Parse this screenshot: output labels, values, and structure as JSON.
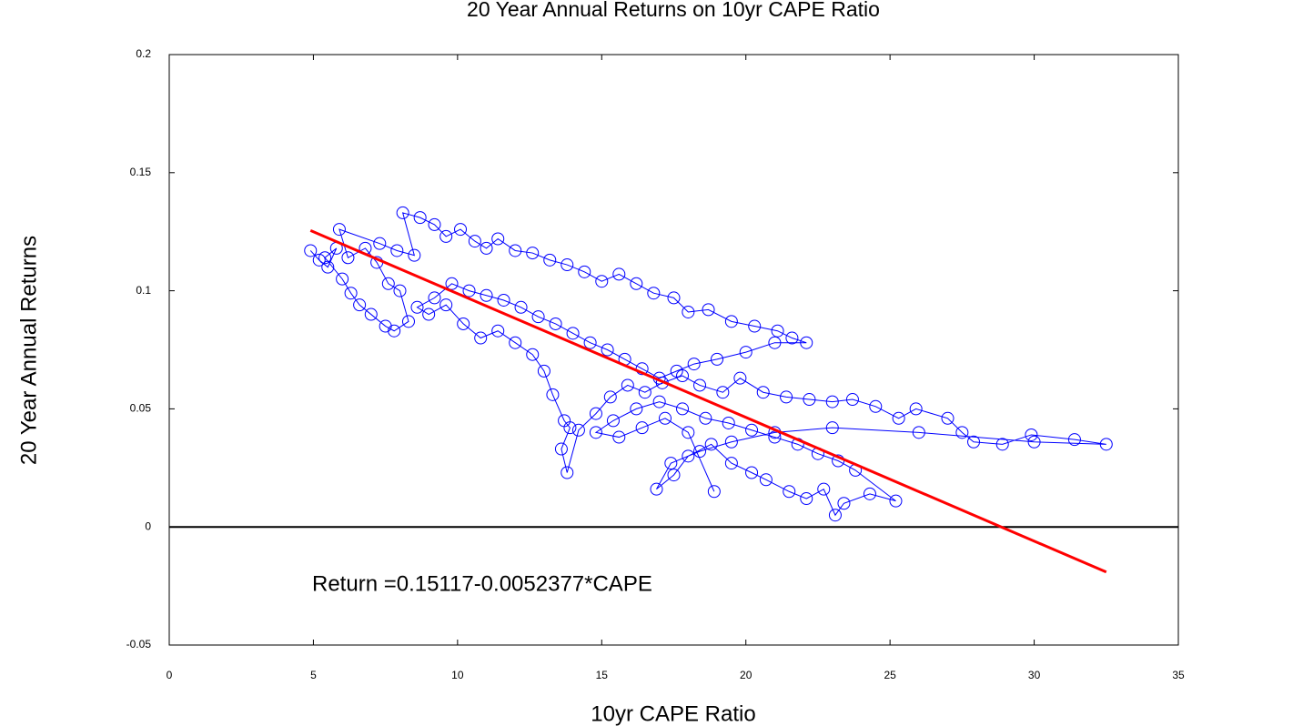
{
  "chart_data": {
    "type": "line",
    "title": "20 Year Annual Returns on 10yr CAPE Ratio",
    "x_label": "10yr CAPE Ratio",
    "y_label": "20 Year Annual Returns",
    "annotation": "Return =0.15117-0.0052377*CAPE",
    "xlim": [
      0,
      35
    ],
    "ylim": [
      -0.05,
      0.2
    ],
    "xticks": [
      0,
      5,
      10,
      15,
      20,
      25,
      30,
      35
    ],
    "yticks": [
      -0.05,
      0,
      0.05,
      0.1,
      0.15,
      0.2
    ],
    "hlines": [
      0
    ],
    "series": [
      {
        "color": "#0000ff",
        "marker": "circle",
        "x": [
          4.9,
          5.2,
          5.5,
          5.8,
          5.4,
          6.0,
          6.3,
          6.6,
          7.0,
          7.5,
          7.8,
          8.3,
          8.0,
          7.6,
          7.2,
          6.8,
          6.2,
          5.9,
          7.3,
          7.9,
          8.5,
          8.1,
          8.7,
          9.2,
          9.6,
          10.1,
          10.6,
          11.0,
          11.4,
          12.0,
          12.6,
          13.2,
          13.8,
          14.4,
          15.0,
          15.6,
          16.2,
          16.8,
          17.5,
          18.0,
          18.7,
          19.5,
          20.3,
          21.1,
          21.6,
          22.1,
          21.0,
          20.0,
          19.0,
          18.2,
          17.6,
          17.0,
          16.4,
          15.8,
          15.2,
          14.6,
          14.0,
          13.4,
          12.8,
          12.2,
          11.6,
          11.0,
          10.4,
          9.8,
          9.2,
          8.6,
          9.0,
          9.6,
          10.2,
          10.8,
          11.4,
          12.0,
          12.6,
          13.0,
          13.3,
          13.7,
          13.9,
          13.6,
          13.8,
          14.2,
          14.8,
          15.3,
          15.9,
          16.5,
          17.1,
          17.8,
          18.4,
          19.2,
          19.8,
          20.6,
          21.4,
          22.2,
          23.0,
          23.7,
          24.5,
          25.3,
          25.9,
          27.0,
          27.5,
          27.9,
          28.9,
          29.9,
          31.4,
          32.5,
          30.0,
          26.0,
          23.0,
          21.0,
          19.5,
          18.4,
          17.4,
          16.9,
          17.5,
          18.0,
          18.8,
          19.5,
          20.2,
          20.7,
          21.5,
          22.1,
          22.7,
          23.1,
          23.4,
          24.3,
          25.2,
          23.8,
          23.2,
          22.5,
          21.8,
          21.0,
          20.2,
          19.4,
          18.6,
          17.8,
          17.0,
          16.2,
          15.4,
          14.8,
          15.6,
          16.4,
          17.2,
          18.0,
          18.9
        ],
        "y": [
          0.117,
          0.113,
          0.11,
          0.118,
          0.114,
          0.105,
          0.099,
          0.094,
          0.09,
          0.085,
          0.083,
          0.087,
          0.1,
          0.103,
          0.112,
          0.118,
          0.114,
          0.126,
          0.12,
          0.117,
          0.115,
          0.133,
          0.131,
          0.128,
          0.123,
          0.126,
          0.121,
          0.118,
          0.122,
          0.117,
          0.116,
          0.113,
          0.111,
          0.108,
          0.104,
          0.107,
          0.103,
          0.099,
          0.097,
          0.091,
          0.092,
          0.087,
          0.085,
          0.083,
          0.08,
          0.078,
          0.078,
          0.074,
          0.071,
          0.069,
          0.066,
          0.063,
          0.067,
          0.071,
          0.075,
          0.078,
          0.082,
          0.086,
          0.089,
          0.093,
          0.096,
          0.098,
          0.1,
          0.103,
          0.097,
          0.093,
          0.09,
          0.094,
          0.086,
          0.08,
          0.083,
          0.078,
          0.073,
          0.066,
          0.056,
          0.045,
          0.042,
          0.033,
          0.023,
          0.041,
          0.048,
          0.055,
          0.06,
          0.057,
          0.061,
          0.064,
          0.06,
          0.057,
          0.063,
          0.057,
          0.055,
          0.054,
          0.053,
          0.054,
          0.051,
          0.046,
          0.05,
          0.046,
          0.04,
          0.036,
          0.035,
          0.039,
          0.037,
          0.035,
          0.036,
          0.04,
          0.042,
          0.04,
          0.036,
          0.032,
          0.027,
          0.016,
          0.022,
          0.03,
          0.035,
          0.027,
          0.023,
          0.02,
          0.015,
          0.012,
          0.016,
          0.005,
          0.01,
          0.014,
          0.011,
          0.024,
          0.028,
          0.031,
          0.035,
          0.038,
          0.041,
          0.044,
          0.046,
          0.05,
          0.053,
          0.05,
          0.045,
          0.04,
          0.038,
          0.042,
          0.046,
          0.04,
          0.015
        ]
      },
      {
        "color": "#ff0000",
        "x": [
          4.9,
          32.5
        ],
        "y": [
          0.1255,
          -0.0191
        ]
      }
    ]
  }
}
